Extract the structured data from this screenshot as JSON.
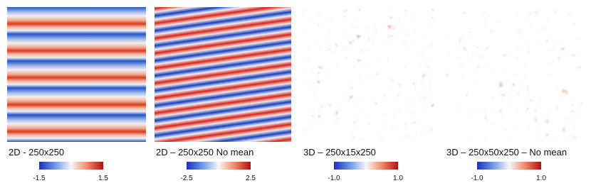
{
  "panels": [
    {
      "caption": "2D - 250x250",
      "colorbar": {
        "min": "-1.5",
        "max": "1.5"
      }
    },
    {
      "caption": "2D – 250x250 No mean",
      "colorbar": {
        "min": "-2.5",
        "max": "2.5"
      }
    },
    {
      "caption": "3D – 250x15x250",
      "colorbar": {
        "min": "-1.0",
        "max": "1.0"
      }
    },
    {
      "caption": "3D – 250x50x250 – No mean",
      "colorbar": {
        "min": "-1.0",
        "max": "1.0"
      }
    }
  ]
}
